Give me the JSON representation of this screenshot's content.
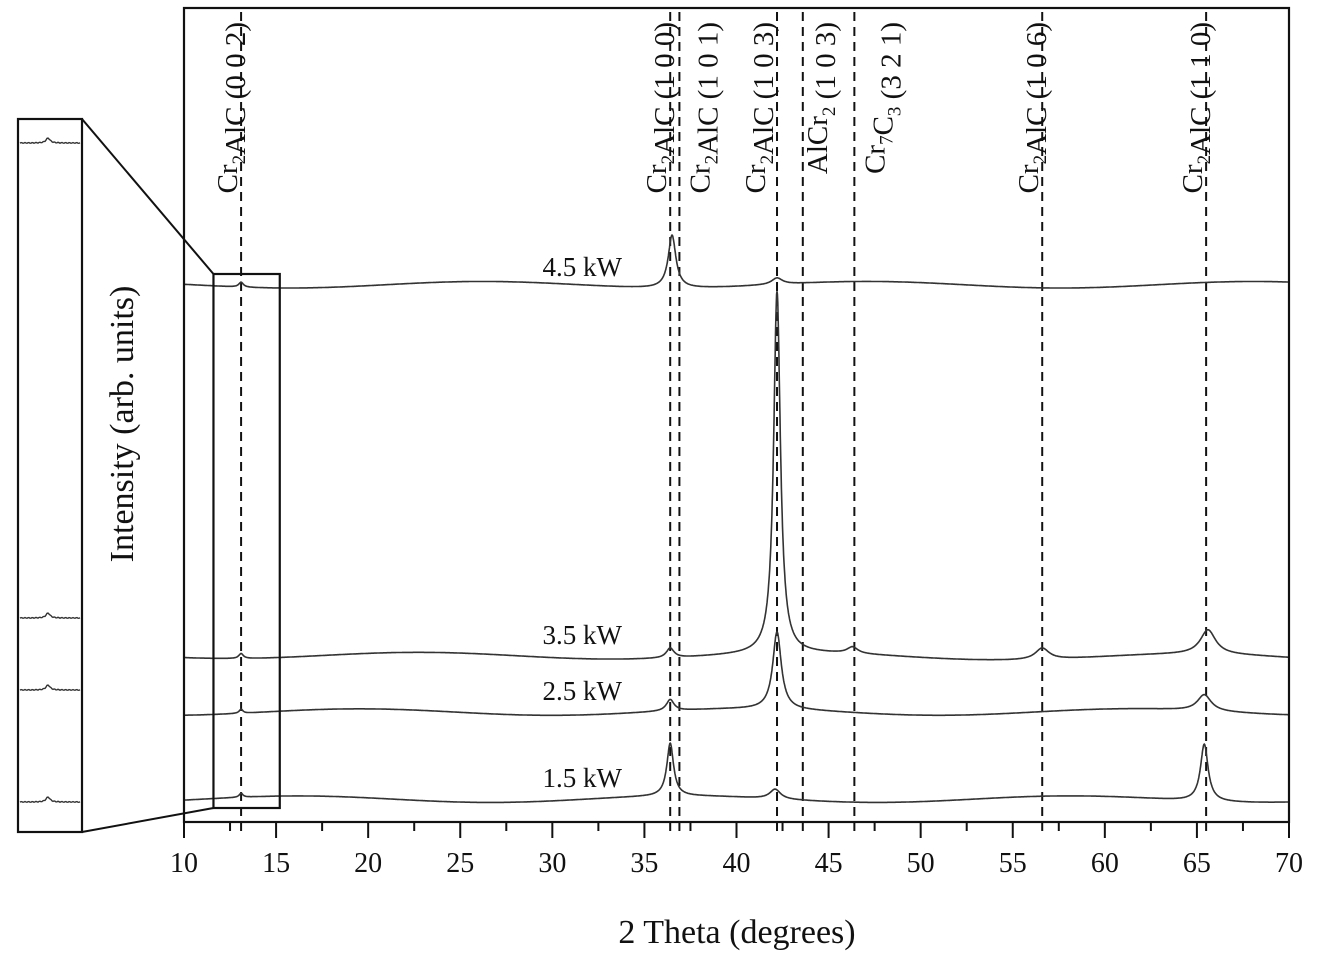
{
  "chart_data": {
    "type": "line",
    "title": "",
    "xlabel": "2 Theta (degrees)",
    "ylabel": "Intensity (arb. units)",
    "xlim": [
      10,
      70
    ],
    "xticks": [
      10,
      15,
      20,
      25,
      30,
      35,
      40,
      45,
      50,
      55,
      60,
      65,
      70
    ],
    "x_minor_tick_step": 2.5,
    "grid": false,
    "legend": "inline labels next to each curve",
    "series": [
      {
        "name": "4.5 kW",
        "baseline": 0.66,
        "peaks": [
          {
            "x": 13.1,
            "height": 0.006,
            "width": 0.15
          },
          {
            "x": 36.5,
            "height": 0.065,
            "width": 0.25
          },
          {
            "x": 42.2,
            "height": 0.008,
            "width": 0.35
          }
        ]
      },
      {
        "name": "3.5 kW",
        "baseline": 0.205,
        "peaks": [
          {
            "x": 13.1,
            "height": 0.006,
            "width": 0.15
          },
          {
            "x": 36.4,
            "height": 0.012,
            "width": 0.25
          },
          {
            "x": 42.2,
            "height": 0.445,
            "width": 0.22
          },
          {
            "x": 46.3,
            "height": 0.008,
            "width": 0.35
          },
          {
            "x": 56.6,
            "height": 0.014,
            "width": 0.45
          },
          {
            "x": 65.6,
            "height": 0.03,
            "width": 0.5
          }
        ]
      },
      {
        "name": "2.5 kW",
        "baseline": 0.135,
        "peaks": [
          {
            "x": 13.1,
            "height": 0.005,
            "width": 0.12
          },
          {
            "x": 36.4,
            "height": 0.014,
            "width": 0.25
          },
          {
            "x": 42.2,
            "height": 0.095,
            "width": 0.28
          },
          {
            "x": 65.4,
            "height": 0.02,
            "width": 0.45
          }
        ]
      },
      {
        "name": "1.5 kW",
        "baseline": 0.028,
        "peaks": [
          {
            "x": 13.1,
            "height": 0.005,
            "width": 0.12
          },
          {
            "x": 36.4,
            "height": 0.065,
            "width": 0.22
          },
          {
            "x": 42.1,
            "height": 0.012,
            "width": 0.35
          },
          {
            "x": 65.4,
            "height": 0.07,
            "width": 0.25
          }
        ]
      }
    ],
    "reference_lines": [
      {
        "x": 13.1,
        "label": "Cr2AlC (0 0 2)",
        "phase": "Cr",
        "sub1": "2",
        "rest": "AlC (0 0 2)"
      },
      {
        "x": 36.4,
        "label": "Cr2AlC (1 0 0)",
        "phase": "Cr",
        "sub1": "2",
        "rest": "AlC (1 0 0)"
      },
      {
        "x": 36.9,
        "label": "Cr2AlC (1 0 1)",
        "phase": "Cr",
        "sub1": "2",
        "rest": "AlC (1 0 1)"
      },
      {
        "x": 42.2,
        "label": "Cr2AlC (1 0 3)",
        "phase": "Cr",
        "sub1": "2",
        "rest": "AlC (1 0 3)"
      },
      {
        "x": 43.6,
        "label": "AlCr2 (1 0 3)",
        "phase": "AlCr",
        "sub1": "2",
        "rest": " (1 0 3)"
      },
      {
        "x": 46.4,
        "label": "Cr7C3 (3 2 1)",
        "phase": "Cr",
        "sub1": "7",
        "mid": "C",
        "sub2": "3",
        "rest": " (3 2 1)"
      },
      {
        "x": 56.6,
        "label": "Cr2AlC (1 0 6)",
        "phase": "Cr",
        "sub1": "2",
        "rest": "AlC (1 0 6)"
      },
      {
        "x": 65.5,
        "label": "Cr2AlC (1 1 0)",
        "phase": "Cr",
        "sub1": "2",
        "rest": "AlC (1 1 0)"
      }
    ],
    "annotations": [
      {
        "type": "zoom-box",
        "x_range": [
          11.6,
          15.2
        ],
        "description": "Inset magnifying the Cr2AlC (0 0 2) peak region near 13.1°, shown at left edge of figure"
      }
    ]
  },
  "labels": {
    "xlabel": "2 Theta (degrees)",
    "ylabel": "Intensity (arb. units)",
    "series_names": [
      "4.5 kW",
      "3.5 kW",
      "2.5 kW",
      "1.5 kW"
    ]
  }
}
